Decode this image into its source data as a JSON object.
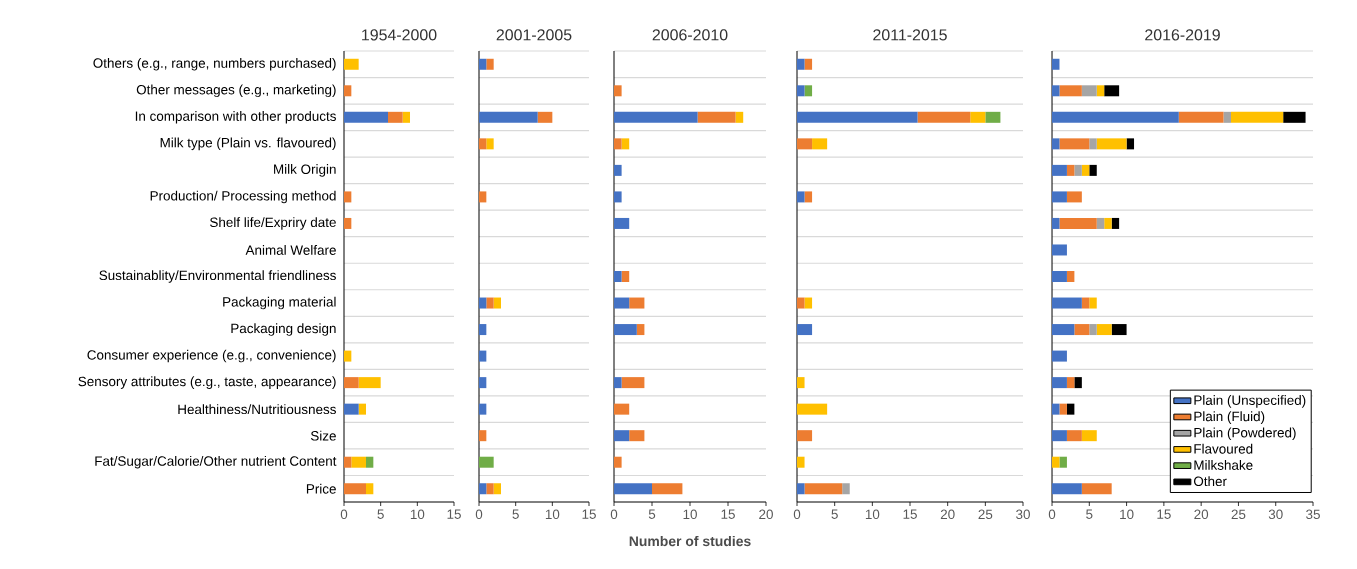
{
  "chart_data": [
    {
      "type": "bar",
      "orientation": "horizontal",
      "stacked": true,
      "grid": "y",
      "title": "1954-2000",
      "categories": [
        "Others (e.g., range, numbers purchased)",
        "Other messages (e.g., marketing)",
        "In comparison with other products",
        "Milk type (Plain vs. flavoured)",
        "Milk Origin",
        "Production/ Processing method",
        "Shelf life/Expriry date",
        "Animal Welfare",
        "Sustainablity/Environmental friendliness",
        "Packaging material",
        "Packaging design",
        "Consumer experience (e.g., convenience)",
        "Sensory attributes (e.g., taste, appearance)",
        "Healthiness/Nutritiousness",
        "Size",
        "Fat/Sugar/Calorie/Other nutrient Content",
        "Price"
      ],
      "xlim": [
        0,
        15
      ],
      "xticks": [
        0,
        5,
        10,
        15
      ],
      "series": [
        {
          "color": "#4472c4",
          "values": [
            0,
            0,
            6,
            0,
            0,
            0,
            0,
            0,
            0,
            0,
            0,
            0,
            0,
            2,
            0,
            0,
            0
          ]
        },
        {
          "color": "#ed7d31",
          "values": [
            0,
            1,
            2,
            0,
            0,
            1,
            1,
            0,
            0,
            0,
            0,
            0,
            2,
            0,
            0,
            1,
            3
          ]
        },
        {
          "color": "#a5a5a5",
          "values": [
            0,
            0,
            0,
            0,
            0,
            0,
            0,
            0,
            0,
            0,
            0,
            0,
            0,
            0,
            0,
            0,
            0
          ]
        },
        {
          "color": "#ffc000",
          "values": [
            2,
            0,
            1,
            0,
            0,
            0,
            0,
            0,
            0,
            0,
            0,
            1,
            3,
            1,
            0,
            2,
            1
          ]
        },
        {
          "color": "#70ad47",
          "values": [
            0,
            0,
            0,
            0,
            0,
            0,
            0,
            0,
            0,
            0,
            0,
            0,
            0,
            0,
            0,
            1,
            0
          ]
        },
        {
          "color": "#000000",
          "values": [
            0,
            0,
            0,
            0,
            0,
            0,
            0,
            0,
            0,
            0,
            0,
            0,
            0,
            0,
            0,
            0,
            0
          ]
        }
      ]
    },
    {
      "type": "bar",
      "orientation": "horizontal",
      "stacked": true,
      "grid": "y",
      "title": "2001-2005",
      "categories": [
        null,
        null,
        null,
        null,
        null,
        null,
        null,
        null,
        null,
        null,
        null,
        null,
        null,
        null,
        null,
        null,
        null
      ],
      "xlim": [
        0,
        15
      ],
      "xticks": [
        0,
        5,
        10,
        15
      ],
      "series": [
        {
          "color": "#4472c4",
          "values": [
            1,
            0,
            8,
            0,
            0,
            0,
            0,
            0,
            0,
            1,
            1,
            1,
            1,
            1,
            0,
            0,
            1
          ]
        },
        {
          "color": "#ed7d31",
          "values": [
            1,
            0,
            2,
            1,
            0,
            1,
            0,
            0,
            0,
            1,
            0,
            0,
            0,
            0,
            1,
            0,
            1
          ]
        },
        {
          "color": "#a5a5a5",
          "values": [
            0,
            0,
            0,
            0,
            0,
            0,
            0,
            0,
            0,
            0,
            0,
            0,
            0,
            0,
            0,
            0,
            0
          ]
        },
        {
          "color": "#ffc000",
          "values": [
            0,
            0,
            0,
            1,
            0,
            0,
            0,
            0,
            0,
            1,
            0,
            0,
            0,
            0,
            0,
            0,
            1
          ]
        },
        {
          "color": "#70ad47",
          "values": [
            0,
            0,
            0,
            0,
            0,
            0,
            0,
            0,
            0,
            0,
            0,
            0,
            0,
            0,
            0,
            2,
            0
          ]
        },
        {
          "color": "#000000",
          "values": [
            0,
            0,
            0,
            0,
            0,
            0,
            0,
            0,
            0,
            0,
            0,
            0,
            0,
            0,
            0,
            0,
            0
          ]
        }
      ]
    },
    {
      "type": "bar",
      "orientation": "horizontal",
      "stacked": true,
      "grid": "y",
      "title": "2006-2010",
      "xlabel": "Number of studies",
      "categories": [
        null,
        null,
        null,
        null,
        null,
        null,
        null,
        null,
        null,
        null,
        null,
        null,
        null,
        null,
        null,
        null,
        null
      ],
      "xlim": [
        0,
        20
      ],
      "xticks": [
        0,
        5,
        10,
        15,
        20
      ],
      "series": [
        {
          "color": "#4472c4",
          "values": [
            0,
            0,
            11,
            0,
            1,
            1,
            2,
            0,
            1,
            2,
            3,
            0,
            1,
            0,
            2,
            0,
            5
          ]
        },
        {
          "color": "#ed7d31",
          "values": [
            0,
            1,
            5,
            1,
            0,
            0,
            0,
            0,
            1,
            2,
            1,
            0,
            3,
            2,
            2,
            1,
            4
          ]
        },
        {
          "color": "#a5a5a5",
          "values": [
            0,
            0,
            0,
            0,
            0,
            0,
            0,
            0,
            0,
            0,
            0,
            0,
            0,
            0,
            0,
            0,
            0
          ]
        },
        {
          "color": "#ffc000",
          "values": [
            0,
            0,
            1,
            1,
            0,
            0,
            0,
            0,
            0,
            0,
            0,
            0,
            0,
            0,
            0,
            0,
            0
          ]
        },
        {
          "color": "#70ad47",
          "values": [
            0,
            0,
            0,
            0,
            0,
            0,
            0,
            0,
            0,
            0,
            0,
            0,
            0,
            0,
            0,
            0,
            0
          ]
        },
        {
          "color": "#000000",
          "values": [
            0,
            0,
            0,
            0,
            0,
            0,
            0,
            0,
            0,
            0,
            0,
            0,
            0,
            0,
            0,
            0,
            0
          ]
        }
      ]
    },
    {
      "type": "bar",
      "orientation": "horizontal",
      "stacked": true,
      "grid": "y",
      "title": "2011-2015",
      "categories": [
        null,
        null,
        null,
        null,
        null,
        null,
        null,
        null,
        null,
        null,
        null,
        null,
        null,
        null,
        null,
        null,
        null
      ],
      "xlim": [
        0,
        30
      ],
      "xticks": [
        0,
        5,
        10,
        15,
        20,
        25,
        30
      ],
      "series": [
        {
          "color": "#4472c4",
          "values": [
            1,
            1,
            16,
            0,
            0,
            1,
            0,
            0,
            0,
            0,
            2,
            0,
            0,
            0,
            0,
            0,
            1
          ]
        },
        {
          "color": "#ed7d31",
          "values": [
            1,
            0,
            7,
            2,
            0,
            1,
            0,
            0,
            0,
            1,
            0,
            0,
            0,
            0,
            2,
            0,
            5
          ]
        },
        {
          "color": "#a5a5a5",
          "values": [
            0,
            0,
            0,
            0,
            0,
            0,
            0,
            0,
            0,
            0,
            0,
            0,
            0,
            0,
            0,
            0,
            1
          ]
        },
        {
          "color": "#ffc000",
          "values": [
            0,
            0,
            2,
            2,
            0,
            0,
            0,
            0,
            0,
            1,
            0,
            0,
            1,
            4,
            0,
            1,
            0
          ]
        },
        {
          "color": "#70ad47",
          "values": [
            0,
            1,
            2,
            0,
            0,
            0,
            0,
            0,
            0,
            0,
            0,
            0,
            0,
            0,
            0,
            0,
            0
          ]
        },
        {
          "color": "#000000",
          "values": [
            0,
            0,
            0,
            0,
            0,
            0,
            0,
            0,
            0,
            0,
            0,
            0,
            0,
            0,
            0,
            0,
            0
          ]
        }
      ]
    },
    {
      "type": "bar",
      "orientation": "horizontal",
      "stacked": true,
      "grid": "y",
      "title": "2016-2019",
      "legend": "bottom right",
      "categories": [
        null,
        null,
        null,
        null,
        null,
        null,
        null,
        null,
        null,
        null,
        null,
        null,
        null,
        null,
        null,
        null,
        null
      ],
      "xlim": [
        0,
        35
      ],
      "xticks": [
        0,
        5,
        10,
        15,
        20,
        25,
        30,
        35
      ],
      "series": [
        {
          "name": "Plain (Unspecified)",
          "color": "#4472c4",
          "values": [
            1,
            1,
            17,
            1,
            2,
            2,
            1,
            2,
            2,
            4,
            3,
            2,
            2,
            1,
            2,
            0,
            4
          ]
        },
        {
          "name": "Plain (Fluid)",
          "color": "#ed7d31",
          "values": [
            0,
            3,
            6,
            4,
            1,
            2,
            5,
            0,
            1,
            1,
            2,
            0,
            1,
            1,
            2,
            0,
            4
          ]
        },
        {
          "name": "Plain (Powdered)",
          "color": "#a5a5a5",
          "values": [
            0,
            2,
            1,
            1,
            1,
            0,
            1,
            0,
            0,
            0,
            1,
            0,
            0,
            0,
            0,
            0,
            0
          ]
        },
        {
          "name": "Flavoured",
          "color": "#ffc000",
          "values": [
            0,
            1,
            7,
            4,
            1,
            0,
            1,
            0,
            0,
            1,
            2,
            0,
            0,
            0,
            2,
            1,
            0
          ]
        },
        {
          "name": "Milkshake",
          "color": "#70ad47",
          "values": [
            0,
            0,
            0,
            0,
            0,
            0,
            0,
            0,
            0,
            0,
            0,
            0,
            0,
            0,
            0,
            1,
            0
          ]
        },
        {
          "name": "Other",
          "color": "#000000",
          "values": [
            0,
            2,
            3,
            1,
            1,
            0,
            1,
            0,
            0,
            0,
            2,
            0,
            1,
            1,
            0,
            0,
            0
          ]
        }
      ]
    }
  ]
}
